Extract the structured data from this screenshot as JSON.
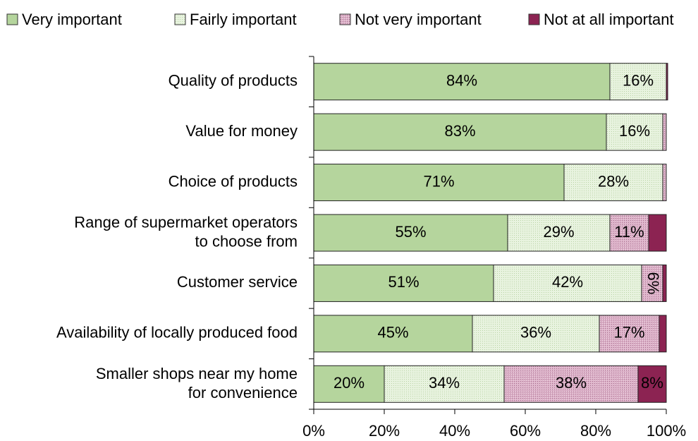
{
  "chart_data": {
    "type": "stacked_barh",
    "categories": [
      "Quality of products",
      "Value for money",
      "Choice of products",
      "Range of supermarket operators\nto choose from",
      "Customer service",
      "Availability of locally produced food",
      "Smaller shops near my home\nfor convenience"
    ],
    "series": [
      {
        "name": "Very important",
        "color": "#b5d59d",
        "values": [
          84,
          83,
          71,
          55,
          51,
          45,
          20
        ],
        "value_labels": [
          "84%",
          "83%",
          "71%",
          "55%",
          "51%",
          "45%",
          "20%"
        ]
      },
      {
        "name": "Fairly important",
        "color": "#e8f3df",
        "values": [
          16,
          16,
          28,
          29,
          42,
          36,
          34
        ],
        "value_labels": [
          "16%",
          "16%",
          "28%",
          "29%",
          "42%",
          "36%",
          "34%"
        ]
      },
      {
        "name": "Not very important",
        "color": "#d8a8c2",
        "values": [
          0,
          1,
          1,
          11,
          6,
          17,
          38
        ],
        "value_labels": [
          null,
          null,
          null,
          "11%",
          "6%",
          "17%",
          "38%"
        ]
      },
      {
        "name": "Not at all important",
        "color": "#8c2352",
        "values": [
          0.4,
          0,
          0,
          5,
          1,
          2,
          8
        ],
        "value_labels": [
          null,
          null,
          null,
          null,
          null,
          null,
          "8%"
        ]
      }
    ],
    "xlim": [
      0,
      100
    ],
    "xticks": [
      {
        "value": 0,
        "label": "0%"
      },
      {
        "value": 20,
        "label": "20%"
      },
      {
        "value": 40,
        "label": "40%"
      },
      {
        "value": 60,
        "label": "60%"
      },
      {
        "value": 80,
        "label": "80%"
      },
      {
        "value": 100,
        "label": "100%"
      }
    ],
    "legend": "top"
  }
}
